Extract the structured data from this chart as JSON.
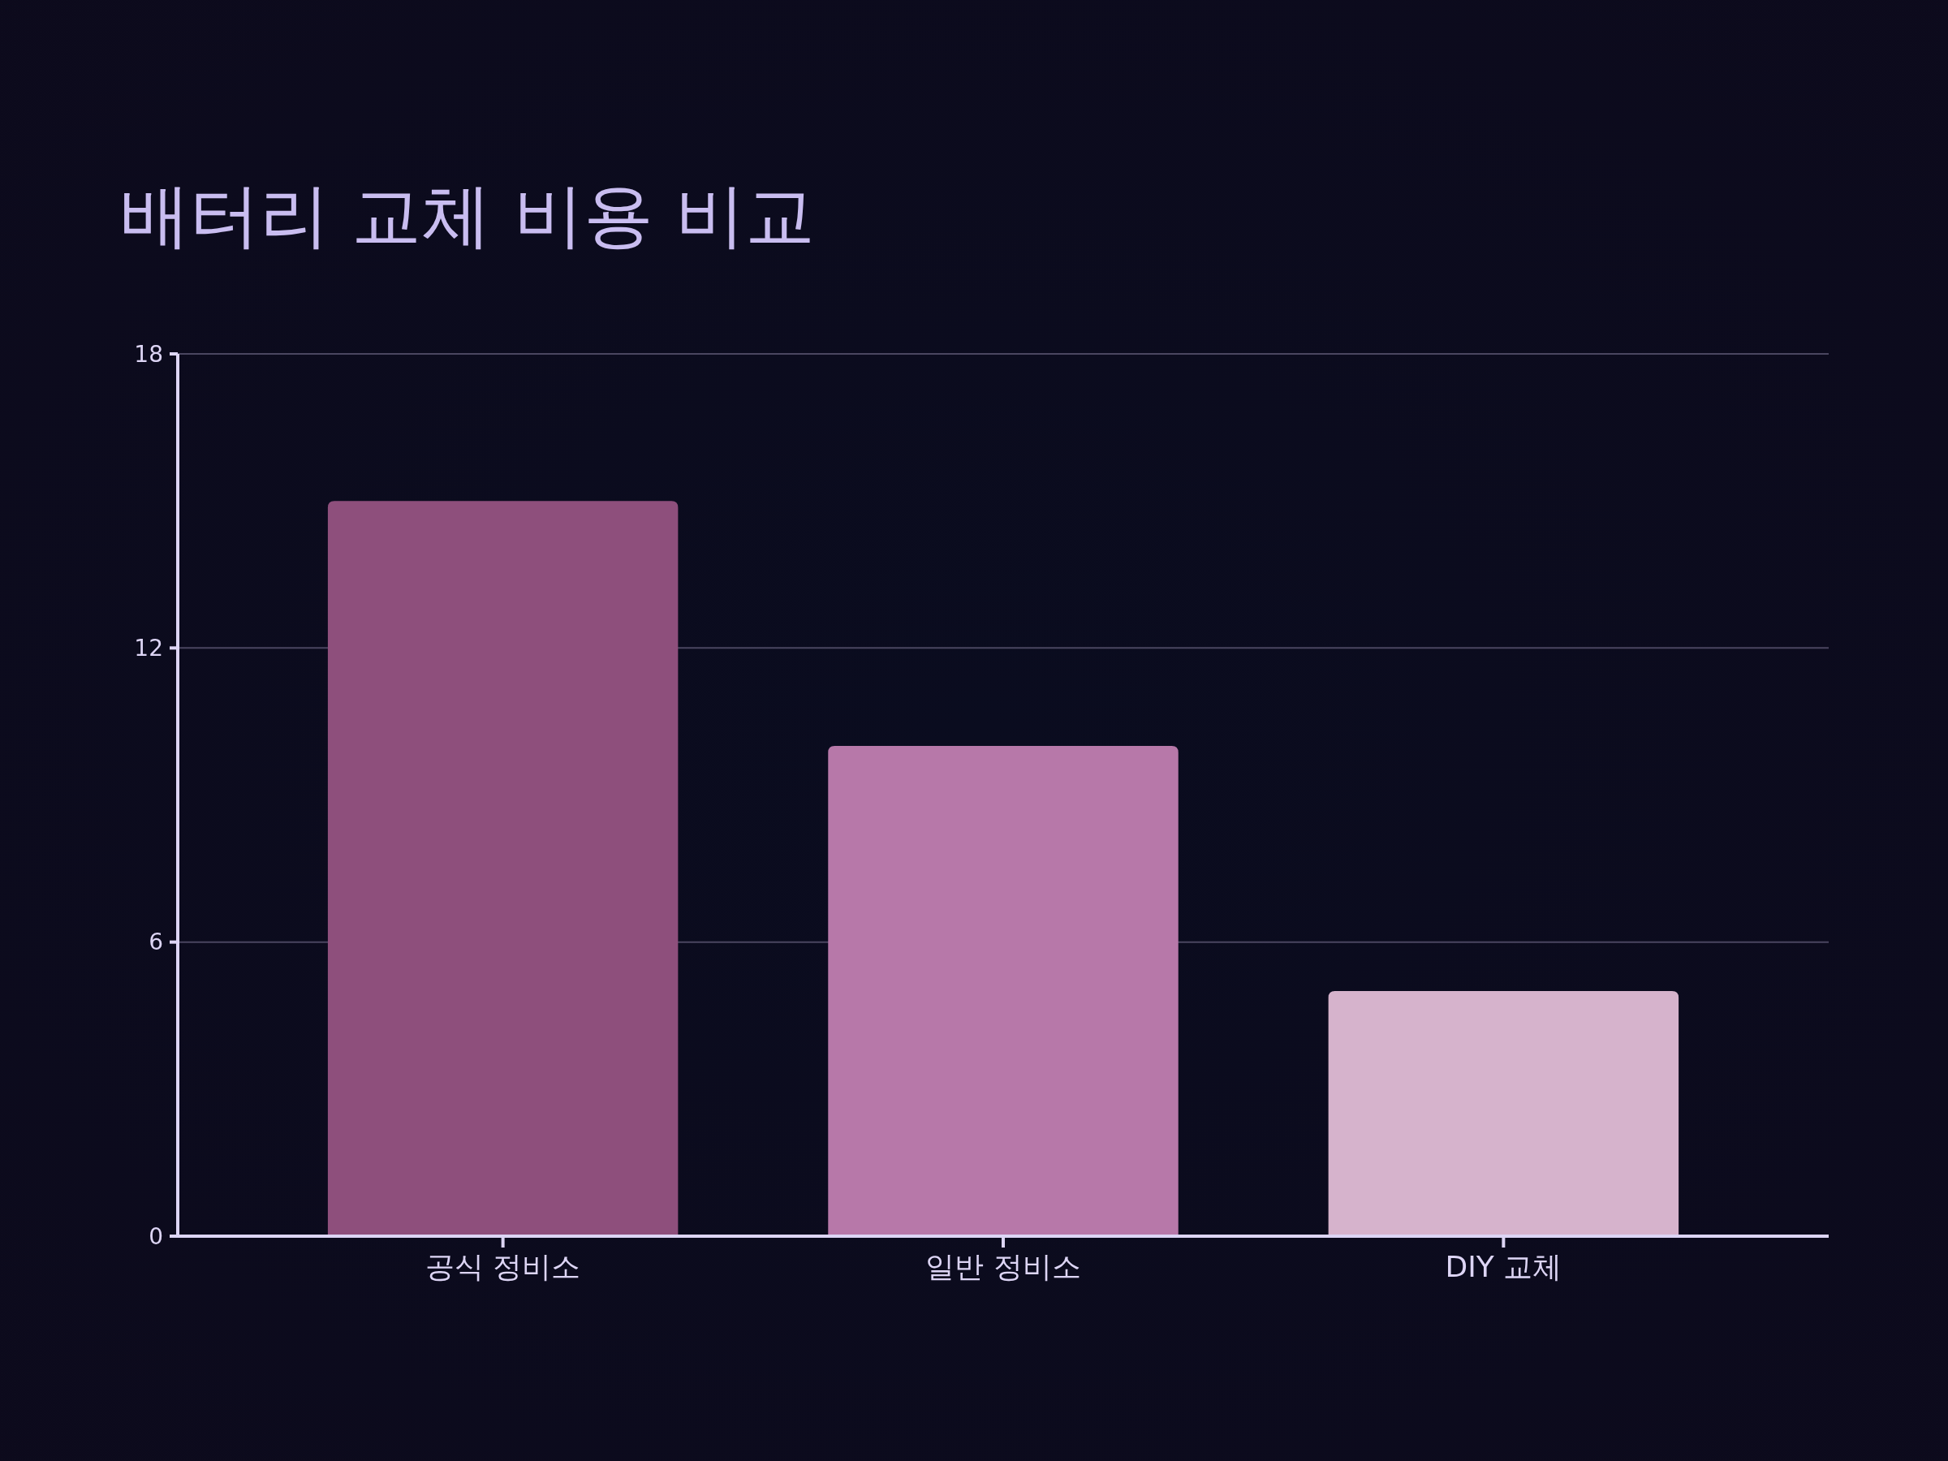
{
  "chart_data": {
    "type": "bar",
    "title": "배터리 교체 비용 비교",
    "categories": [
      "공식 정비소",
      "일반 정비소",
      "DIY 교체"
    ],
    "values": [
      15,
      10,
      5
    ],
    "colors": [
      "#8e4f7c",
      "#b778a9",
      "#d6b3cc"
    ],
    "ylim": [
      0,
      18
    ],
    "yticks": [
      0,
      6,
      12,
      18
    ],
    "grid": "y"
  }
}
